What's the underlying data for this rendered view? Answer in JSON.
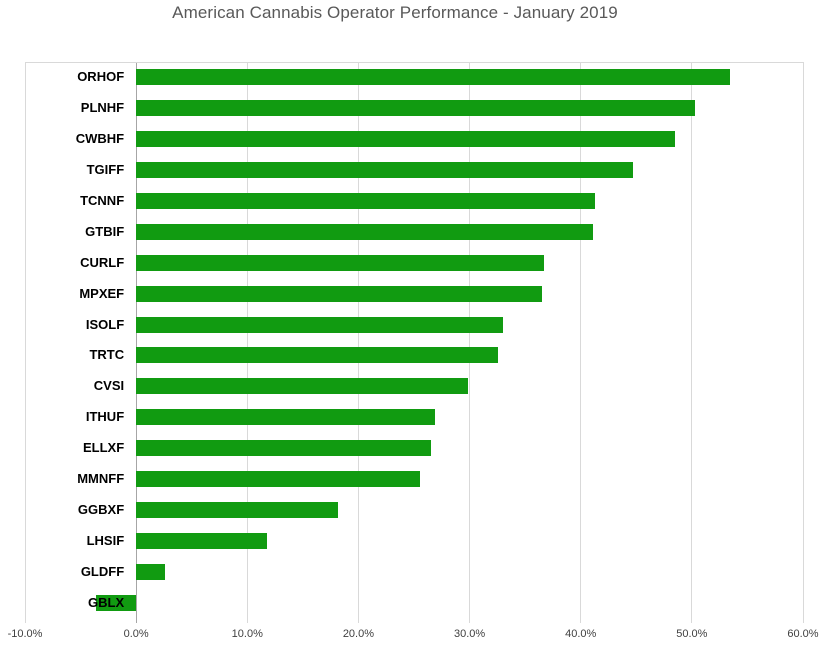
{
  "chart_data": {
    "type": "bar",
    "orientation": "horizontal",
    "title": "American Cannabis Operator Performance - January 2019",
    "categories": [
      "ORHOF",
      "PLNHF",
      "CWBHF",
      "TGIFF",
      "TCNNF",
      "GTBIF",
      "CURLF",
      "MPXEF",
      "ISOLF",
      "TRTC",
      "CVSI",
      "ITHUF",
      "ELLXF",
      "MMNFF",
      "GGBXF",
      "LHSIF",
      "GLDFF",
      "GBLX"
    ],
    "values": [
      53.4,
      50.3,
      48.5,
      44.7,
      41.3,
      41.1,
      36.7,
      36.5,
      33.0,
      32.6,
      29.9,
      26.9,
      26.5,
      25.5,
      18.2,
      11.8,
      2.6,
      -3.6
    ],
    "value_unit": "%",
    "xlabel": "",
    "ylabel": "",
    "xlim": [
      -10,
      60
    ],
    "x_ticks": [
      {
        "value": -10,
        "label": "-10.0%"
      },
      {
        "value": 0,
        "label": "0.0%"
      },
      {
        "value": 10,
        "label": "10.0%"
      },
      {
        "value": 20,
        "label": "20.0%"
      },
      {
        "value": 30,
        "label": "30.0%"
      },
      {
        "value": 40,
        "label": "40.0%"
      },
      {
        "value": 50,
        "label": "50.0%"
      },
      {
        "value": 60,
        "label": "60.0%"
      }
    ],
    "grid": "vertical",
    "legend": false,
    "colors": {
      "bar": "#119B11",
      "gridline": "#D9D9D9",
      "zero_axis": "#A6A6A6",
      "title_text": "#595959",
      "tick_text": "#404040",
      "category_text": "#000000",
      "background": "#FFFFFF"
    }
  }
}
